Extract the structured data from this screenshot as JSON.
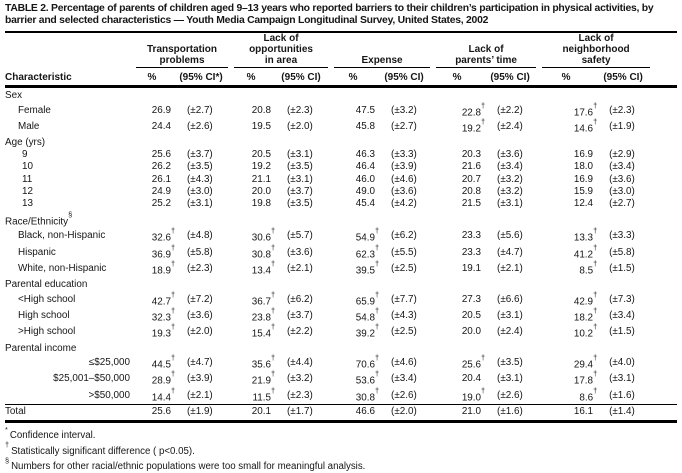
{
  "title": "TABLE 2. Percentage of parents of children aged 9–13 years who reported barriers to their children’s participation in physical activities, by barrier and selected characteristics — Youth Media Campaign Longitudinal Survey, United States, 2002",
  "table": {
    "characteristic_header": "Characteristic",
    "groups": [
      {
        "lines": [
          "Transportation",
          "problems"
        ],
        "pct_header": "%",
        "ci_header": "(95% CI*)"
      },
      {
        "lines": [
          "Lack of",
          "opportunities",
          "in area"
        ],
        "pct_header": "%",
        "ci_header": "(95% CI)"
      },
      {
        "lines": [
          "Expense"
        ],
        "pct_header": "%",
        "ci_header": "(95% CI)"
      },
      {
        "lines": [
          "Lack of",
          "parents’ time"
        ],
        "pct_header": "%",
        "ci_header": "(95% CI)"
      },
      {
        "lines": [
          "Lack of",
          "neighborhood",
          "safety"
        ],
        "pct_header": "%",
        "ci_header": "(95% CI)"
      }
    ],
    "sections": [
      {
        "header": "Sex",
        "header_sup": "",
        "rows": [
          {
            "label": "Female",
            "align": "indent",
            "cells": [
              {
                "v": "26.9",
                "sig": false,
                "ci": "(±2.7)"
              },
              {
                "v": "20.8",
                "sig": false,
                "ci": "(±2.3)"
              },
              {
                "v": "47.5",
                "sig": false,
                "ci": "(±3.2)"
              },
              {
                "v": "22.8",
                "sig": true,
                "ci": "(±2.2)"
              },
              {
                "v": "17.6",
                "sig": true,
                "ci": "(±2.3)"
              }
            ]
          },
          {
            "label": "Male",
            "align": "indent",
            "cells": [
              {
                "v": "24.4",
                "sig": false,
                "ci": "(±2.6)"
              },
              {
                "v": "19.5",
                "sig": false,
                "ci": "(±2.0)"
              },
              {
                "v": "45.8",
                "sig": false,
                "ci": "(±2.7)"
              },
              {
                "v": "19.2",
                "sig": true,
                "ci": "(±2.4)"
              },
              {
                "v": "14.6",
                "sig": true,
                "ci": "(±1.9)"
              }
            ]
          }
        ]
      },
      {
        "header": "Age (yrs)",
        "header_sup": "",
        "rows": [
          {
            "label": "9",
            "align": "age",
            "cells": [
              {
                "v": "25.6",
                "sig": false,
                "ci": "(±3.7)"
              },
              {
                "v": "20.5",
                "sig": false,
                "ci": "(±3.1)"
              },
              {
                "v": "46.3",
                "sig": false,
                "ci": "(±3.3)"
              },
              {
                "v": "20.3",
                "sig": false,
                "ci": "(±3.6)"
              },
              {
                "v": "16.9",
                "sig": false,
                "ci": "(±2.9)"
              }
            ]
          },
          {
            "label": "10",
            "align": "age",
            "cells": [
              {
                "v": "26.2",
                "sig": false,
                "ci": "(±3.5)"
              },
              {
                "v": "19.2",
                "sig": false,
                "ci": "(±3.5)"
              },
              {
                "v": "46.4",
                "sig": false,
                "ci": "(±3.9)"
              },
              {
                "v": "21.6",
                "sig": false,
                "ci": "(±3.4)"
              },
              {
                "v": "18.0",
                "sig": false,
                "ci": "(±3.4)"
              }
            ]
          },
          {
            "label": "11",
            "align": "age",
            "cells": [
              {
                "v": "26.1",
                "sig": false,
                "ci": "(±4.3)"
              },
              {
                "v": "21.1",
                "sig": false,
                "ci": "(±3.1)"
              },
              {
                "v": "46.0",
                "sig": false,
                "ci": "(±4.6)"
              },
              {
                "v": "20.7",
                "sig": false,
                "ci": "(±3.2)"
              },
              {
                "v": "16.9",
                "sig": false,
                "ci": "(±3.6)"
              }
            ]
          },
          {
            "label": "12",
            "align": "age",
            "cells": [
              {
                "v": "24.9",
                "sig": false,
                "ci": "(±3.0)"
              },
              {
                "v": "20.0",
                "sig": false,
                "ci": "(±3.7)"
              },
              {
                "v": "49.0",
                "sig": false,
                "ci": "(±3.6)"
              },
              {
                "v": "20.8",
                "sig": false,
                "ci": "(±3.2)"
              },
              {
                "v": "15.9",
                "sig": false,
                "ci": "(±3.0)"
              }
            ]
          },
          {
            "label": "13",
            "align": "age",
            "cells": [
              {
                "v": "25.2",
                "sig": false,
                "ci": "(±3.1)"
              },
              {
                "v": "19.8",
                "sig": false,
                "ci": "(±3.5)"
              },
              {
                "v": "45.4",
                "sig": false,
                "ci": "(±4.2)"
              },
              {
                "v": "21.5",
                "sig": false,
                "ci": "(±3.1)"
              },
              {
                "v": "12.4",
                "sig": false,
                "ci": "(±2.7)"
              }
            ]
          }
        ]
      },
      {
        "header": "Race/Ethnicity",
        "header_sup": "§",
        "rows": [
          {
            "label": "Black, non-Hispanic",
            "align": "indent",
            "cells": [
              {
                "v": "32.6",
                "sig": true,
                "ci": "(±4.8)"
              },
              {
                "v": "30.6",
                "sig": true,
                "ci": "(±5.7)"
              },
              {
                "v": "54.9",
                "sig": true,
                "ci": "(±6.2)"
              },
              {
                "v": "23.3",
                "sig": false,
                "ci": "(±5.6)"
              },
              {
                "v": "13.3",
                "sig": true,
                "ci": "(±3.3)"
              }
            ]
          },
          {
            "label": "Hispanic",
            "align": "indent",
            "cells": [
              {
                "v": "36.9",
                "sig": true,
                "ci": "(±5.8)"
              },
              {
                "v": "30.8",
                "sig": true,
                "ci": "(±3.6)"
              },
              {
                "v": "62.3",
                "sig": true,
                "ci": "(±5.5)"
              },
              {
                "v": "23.3",
                "sig": false,
                "ci": "(±4.7)"
              },
              {
                "v": "41.2",
                "sig": true,
                "ci": "(±5.8)"
              }
            ]
          },
          {
            "label": "White, non-Hispanic",
            "align": "indent",
            "cells": [
              {
                "v": "18.9",
                "sig": true,
                "ci": "(±2.3)"
              },
              {
                "v": "13.4",
                "sig": true,
                "ci": "(±2.1)"
              },
              {
                "v": "39.5",
                "sig": true,
                "ci": "(±2.5)"
              },
              {
                "v": "19.1",
                "sig": false,
                "ci": "(±2.1)"
              },
              {
                "v": "8.5",
                "sig": true,
                "ci": "(±1.5)"
              }
            ]
          }
        ]
      },
      {
        "header": "Parental education",
        "header_sup": "",
        "rows": [
          {
            "label": "<High school",
            "align": "indent",
            "cells": [
              {
                "v": "42.7",
                "sig": true,
                "ci": "(±7.2)"
              },
              {
                "v": "36.7",
                "sig": true,
                "ci": "(±6.2)"
              },
              {
                "v": "65.9",
                "sig": true,
                "ci": "(±7.7)"
              },
              {
                "v": "27.3",
                "sig": false,
                "ci": "(±6.6)"
              },
              {
                "v": "42.9",
                "sig": true,
                "ci": "(±7.3)"
              }
            ]
          },
          {
            "label": "High school",
            "align": "indent",
            "cells": [
              {
                "v": "32.3",
                "sig": true,
                "ci": "(±3.6)"
              },
              {
                "v": "23.8",
                "sig": true,
                "ci": "(±3.7)"
              },
              {
                "v": "54.8",
                "sig": true,
                "ci": "(±4.3)"
              },
              {
                "v": "20.5",
                "sig": false,
                "ci": "(±3.1)"
              },
              {
                "v": "18.2",
                "sig": true,
                "ci": "(±3.4)"
              }
            ]
          },
          {
            "label": ">High school",
            "align": "indent",
            "cells": [
              {
                "v": "19.3",
                "sig": true,
                "ci": "(±2.0)"
              },
              {
                "v": "15.4",
                "sig": true,
                "ci": "(±2.2)"
              },
              {
                "v": "39.2",
                "sig": true,
                "ci": "(±2.5)"
              },
              {
                "v": "20.0",
                "sig": false,
                "ci": "(±2.4)"
              },
              {
                "v": "10.2",
                "sig": true,
                "ci": "(±1.5)"
              }
            ]
          }
        ]
      },
      {
        "header": "Parental income",
        "header_sup": "",
        "rows": [
          {
            "label": "≤$25,000",
            "align": "right",
            "cells": [
              {
                "v": "44.5",
                "sig": true,
                "ci": "(±4.7)"
              },
              {
                "v": "35.6",
                "sig": true,
                "ci": "(±4.4)"
              },
              {
                "v": "70.6",
                "sig": true,
                "ci": "(±4.6)"
              },
              {
                "v": "25.6",
                "sig": true,
                "ci": "(±3.5)"
              },
              {
                "v": "29.4",
                "sig": true,
                "ci": "(±4.0)"
              }
            ]
          },
          {
            "label": "$25,001–$50,000",
            "align": "right",
            "cells": [
              {
                "v": "28.9",
                "sig": true,
                "ci": "(±3.9)"
              },
              {
                "v": "21.9",
                "sig": true,
                "ci": "(±3.2)"
              },
              {
                "v": "53.6",
                "sig": true,
                "ci": "(±3.4)"
              },
              {
                "v": "20.4",
                "sig": false,
                "ci": "(±3.1)"
              },
              {
                "v": "17.8",
                "sig": true,
                "ci": "(±3.1)"
              }
            ]
          },
          {
            "label": ">$50,000",
            "align": "right",
            "cells": [
              {
                "v": "14.4",
                "sig": true,
                "ci": "(±2.1)"
              },
              {
                "v": "11.5",
                "sig": true,
                "ci": "(±2.3)"
              },
              {
                "v": "30.8",
                "sig": true,
                "ci": "(±2.6)"
              },
              {
                "v": "19.0",
                "sig": true,
                "ci": "(±2.6)"
              },
              {
                "v": "8.6",
                "sig": true,
                "ci": "(±1.6)"
              }
            ]
          }
        ]
      }
    ],
    "total": {
      "label": "Total",
      "cells": [
        {
          "v": "25.6",
          "sig": false,
          "ci": "(±1.9)"
        },
        {
          "v": "20.1",
          "sig": false,
          "ci": "(±1.7)"
        },
        {
          "v": "46.6",
          "sig": false,
          "ci": "(±2.0)"
        },
        {
          "v": "21.0",
          "sig": false,
          "ci": "(±1.6)"
        },
        {
          "v": "16.1",
          "sig": false,
          "ci": "(±1.4)"
        }
      ]
    }
  },
  "footnotes": [
    {
      "marker": "*",
      "text": "Confidence interval."
    },
    {
      "marker": "†",
      "text": "Statistically significant difference ( p<0.05)."
    },
    {
      "marker": "§",
      "text": "Numbers for other racial/ethnic populations were too small for meaningful analysis."
    }
  ],
  "sig_marker": "†"
}
